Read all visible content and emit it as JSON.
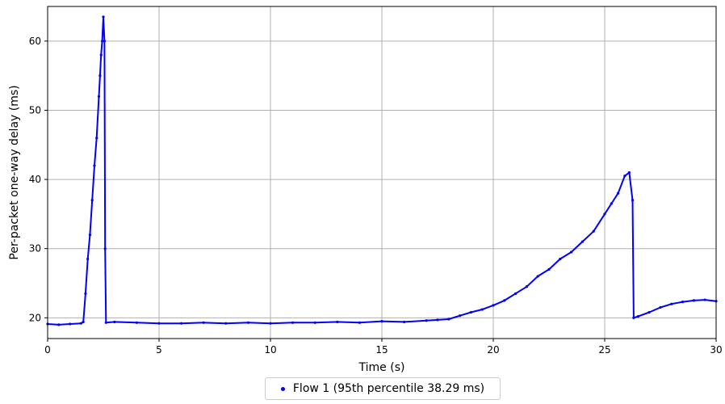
{
  "chart_data": {
    "type": "scatter",
    "title": "",
    "xlabel": "Time (s)",
    "ylabel": "Per-packet one-way delay (ms)",
    "xlim": [
      0,
      30
    ],
    "ylim": [
      17,
      65
    ],
    "xticks": [
      0,
      5,
      10,
      15,
      20,
      25,
      30
    ],
    "xtick_labels": [
      "0",
      "5",
      "10",
      "15",
      "20",
      "25",
      "30"
    ],
    "yticks": [
      20,
      30,
      40,
      50,
      60
    ],
    "ytick_labels": [
      "20",
      "30",
      "40",
      "50",
      "60"
    ],
    "grid": true,
    "legend_position": "bottom-center",
    "series": [
      {
        "name": "Flow 1 (95th percentile 38.29 ms)",
        "color": "#0000ff",
        "x": [
          0.0,
          0.5,
          1.0,
          1.5,
          1.6,
          1.7,
          1.8,
          1.9,
          2.0,
          2.1,
          2.2,
          2.3,
          2.35,
          2.4,
          2.45,
          2.5,
          2.55,
          2.58,
          2.62,
          3.0,
          4.0,
          5.0,
          6.0,
          7.0,
          8.0,
          9.0,
          10.0,
          11.0,
          12.0,
          13.0,
          14.0,
          15.0,
          16.0,
          17.0,
          17.5,
          18.0,
          18.5,
          19.0,
          19.5,
          20.0,
          20.5,
          21.0,
          21.5,
          22.0,
          22.5,
          23.0,
          23.5,
          24.0,
          24.5,
          25.0,
          25.3,
          25.6,
          25.9,
          26.1,
          26.25,
          26.3,
          26.5,
          27.0,
          27.5,
          28.0,
          28.5,
          29.0,
          29.5,
          30.0
        ],
        "y": [
          19.1,
          19.0,
          19.1,
          19.2,
          19.4,
          23.5,
          28.5,
          32.0,
          37.0,
          42.0,
          46.0,
          52.0,
          55.0,
          58.0,
          60.0,
          63.5,
          60.0,
          30.0,
          19.3,
          19.4,
          19.3,
          19.2,
          19.2,
          19.3,
          19.2,
          19.3,
          19.2,
          19.3,
          19.3,
          19.4,
          19.3,
          19.5,
          19.4,
          19.6,
          19.7,
          19.8,
          20.3,
          20.8,
          21.2,
          21.8,
          22.5,
          23.5,
          24.5,
          26.0,
          27.0,
          28.5,
          29.5,
          31.0,
          32.5,
          35.0,
          36.5,
          38.0,
          40.5,
          41.0,
          37.0,
          20.0,
          20.2,
          20.8,
          21.5,
          22.0,
          22.3,
          22.5,
          22.6,
          22.4
        ]
      }
    ]
  },
  "legend": {
    "label": "Flow 1 (95th percentile 38.29 ms)"
  }
}
